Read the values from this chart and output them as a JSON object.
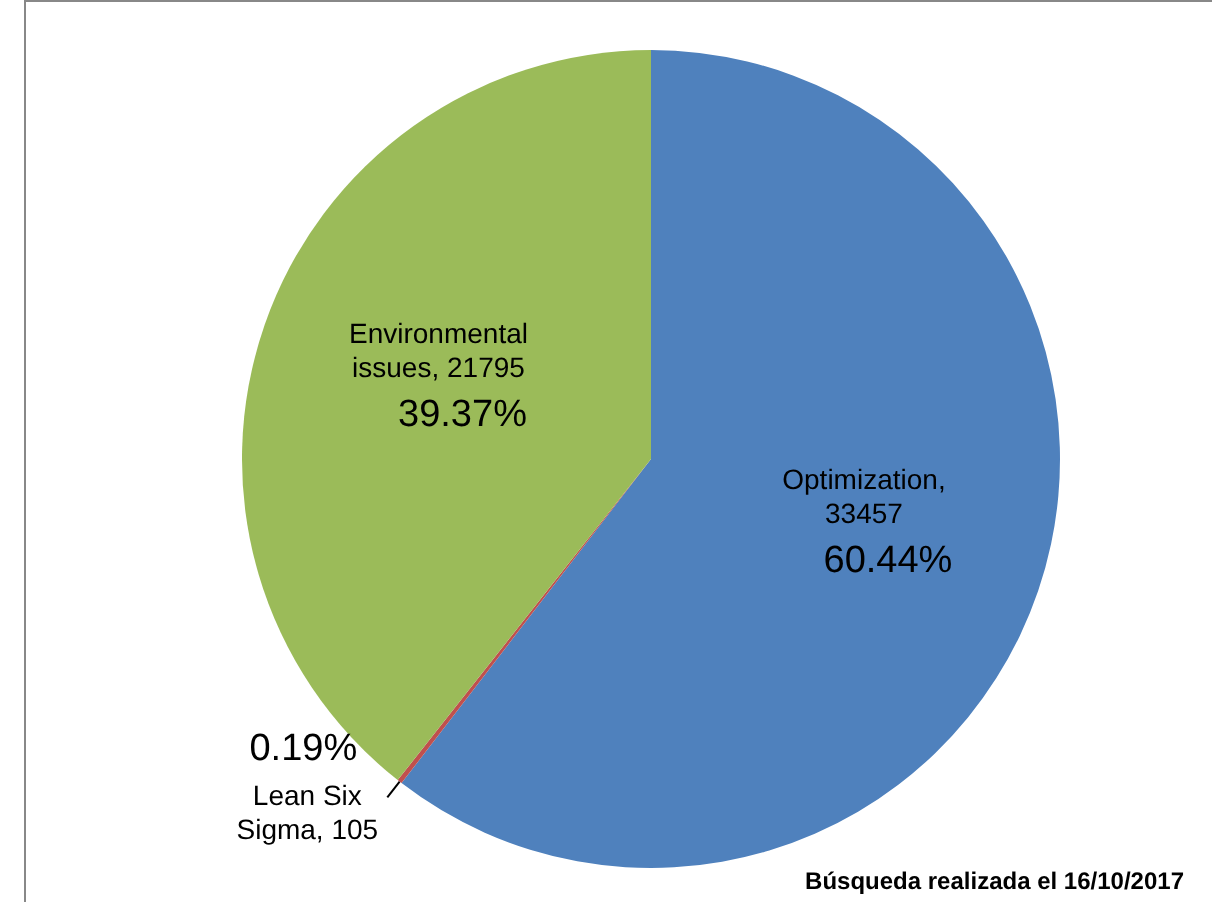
{
  "chart_data": {
    "type": "pie",
    "categories": [
      "Optimization, 33457",
      "Lean Six Sigma, 105",
      "Environmental issues, 21795"
    ],
    "values": [
      60.44,
      0.19,
      39.37
    ],
    "colors": [
      "#4f81bd",
      "#c0504d",
      "#9bbb59"
    ],
    "value_labels": [
      "60.44%",
      "0.19%",
      "39.37%"
    ],
    "data_labels": true,
    "legend": false,
    "annotations": [
      "Búsqueda realizada el 16/10/2017"
    ]
  }
}
